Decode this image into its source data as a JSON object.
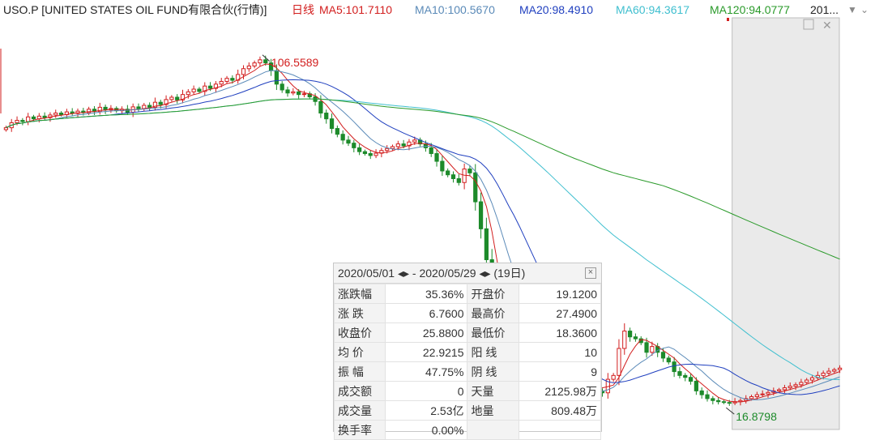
{
  "header": {
    "symbol": "USO.P [UNITED STATES OIL FUND有限合伙(行情)]",
    "period": "日线",
    "ma5": "MA5:101.7110",
    "ma10": "MA10:100.5670",
    "ma20": "MA20:98.4910",
    "ma60": "MA60:94.3617",
    "ma120": "MA120:94.0777",
    "year": "201..."
  },
  "colors": {
    "up": "#d21e1e",
    "down": "#1d8a2a",
    "ma5": "#d21e1e",
    "ma10": "#5a8ab8",
    "ma20": "#1f3fbf",
    "ma60": "#3fbfcf",
    "ma120": "#2a9a2a"
  },
  "stats": {
    "range_start": "2020/05/01",
    "range_end": "2020/05/29",
    "sep": "-",
    "days": "(19日)",
    "rows": [
      {
        "l1": "涨跌幅",
        "v1": "35.36%",
        "l2": "开盘价",
        "v2": "19.1200",
        "c1": "red",
        "c2": "red"
      },
      {
        "l1": "涨 跌",
        "v1": "6.7600",
        "l2": "最高价",
        "v2": "27.4900",
        "c1": "red",
        "c2": "red"
      },
      {
        "l1": "收盘价",
        "v1": "25.8800",
        "l2": "最低价",
        "v2": "18.3600",
        "c1": "red",
        "c2": "red"
      },
      {
        "l1": "均 价",
        "v1": "22.9215",
        "l2": "阳 线",
        "v2": "10",
        "c1": "red",
        "c2": "red"
      },
      {
        "l1": "振 幅",
        "v1": "47.75%",
        "l2": "阴 线",
        "v2": "9",
        "c1": "red",
        "c2": "green"
      },
      {
        "l1": "成交额",
        "v1": "0",
        "l2": "天量",
        "v2": "2125.98万",
        "c1": "black",
        "c2": "black"
      },
      {
        "l1": "成交量",
        "v1": "2.53亿",
        "l2": "地量",
        "v2": "809.48万",
        "c1": "black",
        "c2": "black"
      },
      {
        "l1": "换手率",
        "v1": "0.00%",
        "l2": "",
        "v2": "",
        "c1": "black",
        "c2": "black"
      }
    ]
  },
  "chart_data": {
    "type": "candlestick",
    "annotations": [
      {
        "text": "106.5589",
        "kind": "high"
      },
      {
        "text": "16.8798",
        "kind": "low"
      }
    ],
    "ylim": [
      10,
      115
    ],
    "closes": [
      88.2,
      89.5,
      90.1,
      89.8,
      91.0,
      90.5,
      91.2,
      90.8,
      91.5,
      92.0,
      91.6,
      92.3,
      91.9,
      92.5,
      92.1,
      93.0,
      92.4,
      93.5,
      92.8,
      93.2,
      92.6,
      93.0,
      92.2,
      93.6,
      93.1,
      94.0,
      93.5,
      94.8,
      94.2,
      95.5,
      96.1,
      95.4,
      96.8,
      97.5,
      98.2,
      97.6,
      99.0,
      98.4,
      99.5,
      100.2,
      101.0,
      100.5,
      102.0,
      103.5,
      104.2,
      105.0,
      105.8,
      105.0,
      103.0,
      99.5,
      98.0,
      97.2,
      97.5,
      96.8,
      97.0,
      96.2,
      95.0,
      92.0,
      90.5,
      88.0,
      86.5,
      85.0,
      84.2,
      83.0,
      82.0,
      81.5,
      81.0,
      81.6,
      82.3,
      82.8,
      83.3,
      84.0,
      83.5,
      84.5,
      85.0,
      84.0,
      83.0,
      81.5,
      79.5,
      77.0,
      76.0,
      75.0,
      74.0,
      77.5,
      76.5,
      69.0,
      62.0,
      54.0,
      45.0,
      36.0,
      30.0,
      28.5,
      31.0,
      27.0,
      24.0,
      22.5,
      21.8,
      21.0,
      20.0,
      19.0,
      17.5,
      18.5,
      19.5,
      20.5,
      21.5,
      22.0,
      21.0,
      20.0,
      19.5,
      23.0,
      24.0,
      31.0,
      35.5,
      34.0,
      33.5,
      32.5,
      30.0,
      31.5,
      30.0,
      28.5,
      27.5,
      25.0,
      24.0,
      23.5,
      22.5,
      20.0,
      19.0,
      18.0,
      17.5,
      17.2,
      17.0,
      16.9,
      17.2,
      17.5,
      18.0,
      18.5,
      19.0,
      19.2,
      19.6,
      20.0,
      20.3,
      20.8,
      21.2,
      21.6,
      22.2,
      22.8,
      23.4,
      24.0,
      24.6,
      25.1,
      25.5,
      25.9
    ],
    "x_range_hint": "candles scroll left-to-right over ~150 trading days; shaded box = selected range 2020/05/01–2020/05/29"
  }
}
